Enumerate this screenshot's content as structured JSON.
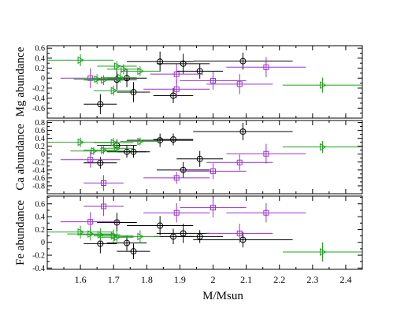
{
  "chart_data": {
    "type": "scatter",
    "xlabel": "M/Msun",
    "xlim": [
      1.5,
      2.45
    ],
    "xticks": [
      "1.6",
      "1.7",
      "1.8",
      "1.9",
      "2",
      "2.1",
      "2.2",
      "2.3",
      "2.4"
    ],
    "series_styles": [
      {
        "id": "black",
        "marker": "circle",
        "color": "#000000"
      },
      {
        "id": "purple",
        "marker": "square",
        "color": "#9a32cd"
      },
      {
        "id": "green",
        "marker": "triangle-right",
        "color": "#22a022"
      }
    ],
    "panels": [
      {
        "ylabel": "Mg abundance",
        "ylim": [
          -0.8,
          0.65
        ],
        "yticks": [
          "0.6",
          "0.4",
          "0.2",
          "0",
          "-0.2",
          "-0.4",
          "-0.6"
        ],
        "series": [
          {
            "style": "black",
            "points": [
              {
                "x": 1.66,
                "y": -0.52,
                "xerr": 0.05,
                "yerr": 0.2
              },
              {
                "x": 1.71,
                "y": -0.03,
                "xerr": 0.06,
                "yerr": 0.2
              },
              {
                "x": 1.74,
                "y": 0.0,
                "xerr": 0.06,
                "yerr": 0.18
              },
              {
                "x": 1.76,
                "y": -0.28,
                "xerr": 0.05,
                "yerr": 0.2
              },
              {
                "x": 1.84,
                "y": 0.33,
                "xerr": 0.1,
                "yerr": 0.2
              },
              {
                "x": 1.88,
                "y": -0.35,
                "xerr": 0.06,
                "yerr": 0.15
              },
              {
                "x": 1.91,
                "y": 0.29,
                "xerr": 0.08,
                "yerr": 0.2
              },
              {
                "x": 1.96,
                "y": 0.14,
                "xerr": 0.07,
                "yerr": 0.15
              },
              {
                "x": 2.09,
                "y": 0.34,
                "xerr": 0.15,
                "yerr": 0.17
              }
            ]
          },
          {
            "style": "purple",
            "points": [
              {
                "x": 1.63,
                "y": 0.0,
                "xerr": 0.09,
                "yerr": 0.2
              },
              {
                "x": 1.89,
                "y": -0.22,
                "xerr": 0.1,
                "yerr": 0.18
              },
              {
                "x": 1.89,
                "y": 0.08,
                "xerr": 0.08,
                "yerr": 0.2
              },
              {
                "x": 2.0,
                "y": -0.05,
                "xerr": 0.1,
                "yerr": 0.18
              },
              {
                "x": 2.08,
                "y": -0.12,
                "xerr": 0.1,
                "yerr": 0.2
              },
              {
                "x": 2.16,
                "y": 0.22,
                "xerr": 0.12,
                "yerr": 0.2
              }
            ]
          },
          {
            "style": "green",
            "points": [
              {
                "x": 1.6,
                "y": 0.36,
                "xerr": 0.1,
                "yerr": 0.12
              },
              {
                "x": 1.65,
                "y": -0.02,
                "xerr": 0.07,
                "yerr": 0.1
              },
              {
                "x": 1.67,
                "y": -0.04,
                "xerr": 0.06,
                "yerr": 0.1
              },
              {
                "x": 1.7,
                "y": -0.25,
                "xerr": 0.06,
                "yerr": 0.1
              },
              {
                "x": 1.71,
                "y": 0.24,
                "xerr": 0.06,
                "yerr": 0.1
              },
              {
                "x": 1.72,
                "y": 0.01,
                "xerr": 0.05,
                "yerr": 0.1
              },
              {
                "x": 1.73,
                "y": 0.18,
                "xerr": 0.05,
                "yerr": 0.1
              },
              {
                "x": 1.78,
                "y": 0.14,
                "xerr": 0.06,
                "yerr": 0.1
              },
              {
                "x": 2.33,
                "y": -0.14,
                "xerr": 0.12,
                "yerr": 0.15
              }
            ]
          }
        ]
      },
      {
        "ylabel": "Ca abundance",
        "ylim": [
          -1.0,
          0.85
        ],
        "yticks": [
          "0.8",
          "0.6",
          "0.4",
          "0.2",
          "0",
          "-0.2",
          "-0.4",
          "-0.6",
          "-0.8"
        ],
        "series": [
          {
            "style": "black",
            "points": [
              {
                "x": 1.66,
                "y": -0.22,
                "xerr": 0.05,
                "yerr": 0.15
              },
              {
                "x": 1.71,
                "y": 0.22,
                "xerr": 0.06,
                "yerr": 0.15
              },
              {
                "x": 1.74,
                "y": 0.06,
                "xerr": 0.06,
                "yerr": 0.15
              },
              {
                "x": 1.76,
                "y": 0.06,
                "xerr": 0.05,
                "yerr": 0.15
              },
              {
                "x": 1.84,
                "y": 0.35,
                "xerr": 0.1,
                "yerr": 0.17
              },
              {
                "x": 1.88,
                "y": 0.37,
                "xerr": 0.06,
                "yerr": 0.15
              },
              {
                "x": 1.91,
                "y": -0.4,
                "xerr": 0.08,
                "yerr": 0.2
              },
              {
                "x": 1.96,
                "y": -0.12,
                "xerr": 0.07,
                "yerr": 0.2
              },
              {
                "x": 2.09,
                "y": 0.57,
                "xerr": 0.15,
                "yerr": 0.22
              }
            ]
          },
          {
            "style": "purple",
            "points": [
              {
                "x": 1.63,
                "y": -0.14,
                "xerr": 0.09,
                "yerr": 0.2
              },
              {
                "x": 1.67,
                "y": -0.73,
                "xerr": 0.06,
                "yerr": 0.2
              },
              {
                "x": 1.89,
                "y": -0.6,
                "xerr": 0.1,
                "yerr": 0.15
              },
              {
                "x": 2.0,
                "y": -0.43,
                "xerr": 0.1,
                "yerr": 0.2
              },
              {
                "x": 2.08,
                "y": -0.21,
                "xerr": 0.1,
                "yerr": 0.2
              },
              {
                "x": 2.16,
                "y": 0.01,
                "xerr": 0.12,
                "yerr": 0.25
              }
            ]
          },
          {
            "style": "green",
            "points": [
              {
                "x": 1.6,
                "y": 0.3,
                "xerr": 0.1,
                "yerr": 0.12
              },
              {
                "x": 1.64,
                "y": 0.08,
                "xerr": 0.07,
                "yerr": 0.1
              },
              {
                "x": 1.67,
                "y": 0.1,
                "xerr": 0.06,
                "yerr": 0.1
              },
              {
                "x": 1.7,
                "y": 0.29,
                "xerr": 0.06,
                "yerr": 0.12
              },
              {
                "x": 1.71,
                "y": 0.15,
                "xerr": 0.05,
                "yerr": 0.1
              },
              {
                "x": 1.78,
                "y": 0.32,
                "xerr": 0.06,
                "yerr": 0.1
              },
              {
                "x": 2.33,
                "y": 0.18,
                "xerr": 0.12,
                "yerr": 0.15
              }
            ]
          }
        ]
      },
      {
        "ylabel": "Fe abundance",
        "ylim": [
          -0.42,
          0.72
        ],
        "yticks": [
          "0.6",
          "0.4",
          "0.2",
          "0",
          "-0.2",
          "-0.4"
        ],
        "series": [
          {
            "style": "black",
            "points": [
              {
                "x": 1.66,
                "y": -0.02,
                "xerr": 0.05,
                "yerr": 0.15
              },
              {
                "x": 1.71,
                "y": 0.31,
                "xerr": 0.06,
                "yerr": 0.15
              },
              {
                "x": 1.74,
                "y": -0.01,
                "xerr": 0.06,
                "yerr": 0.12
              },
              {
                "x": 1.76,
                "y": -0.14,
                "xerr": 0.05,
                "yerr": 0.12
              },
              {
                "x": 1.84,
                "y": 0.26,
                "xerr": 0.1,
                "yerr": 0.15
              },
              {
                "x": 1.88,
                "y": 0.09,
                "xerr": 0.06,
                "yerr": 0.12
              },
              {
                "x": 1.91,
                "y": 0.14,
                "xerr": 0.08,
                "yerr": 0.15
              },
              {
                "x": 1.96,
                "y": 0.09,
                "xerr": 0.07,
                "yerr": 0.1
              },
              {
                "x": 2.09,
                "y": 0.04,
                "xerr": 0.15,
                "yerr": 0.12
              }
            ]
          },
          {
            "style": "purple",
            "points": [
              {
                "x": 1.63,
                "y": 0.32,
                "xerr": 0.09,
                "yerr": 0.15
              },
              {
                "x": 1.67,
                "y": 0.56,
                "xerr": 0.06,
                "yerr": 0.15
              },
              {
                "x": 1.89,
                "y": 0.46,
                "xerr": 0.1,
                "yerr": 0.15
              },
              {
                "x": 2.0,
                "y": 0.54,
                "xerr": 0.1,
                "yerr": 0.15
              },
              {
                "x": 2.08,
                "y": 0.14,
                "xerr": 0.1,
                "yerr": 0.15
              },
              {
                "x": 2.16,
                "y": 0.46,
                "xerr": 0.12,
                "yerr": 0.15
              }
            ]
          },
          {
            "style": "green",
            "points": [
              {
                "x": 1.6,
                "y": 0.16,
                "xerr": 0.1,
                "yerr": 0.1
              },
              {
                "x": 1.63,
                "y": 0.13,
                "xerr": 0.07,
                "yerr": 0.1
              },
              {
                "x": 1.66,
                "y": 0.12,
                "xerr": 0.06,
                "yerr": 0.1
              },
              {
                "x": 1.7,
                "y": 0.1,
                "xerr": 0.06,
                "yerr": 0.1
              },
              {
                "x": 1.71,
                "y": 0.08,
                "xerr": 0.05,
                "yerr": 0.1
              },
              {
                "x": 1.78,
                "y": 0.09,
                "xerr": 0.06,
                "yerr": 0.1
              },
              {
                "x": 2.33,
                "y": -0.15,
                "xerr": 0.12,
                "yerr": 0.15
              }
            ]
          }
        ]
      }
    ]
  }
}
